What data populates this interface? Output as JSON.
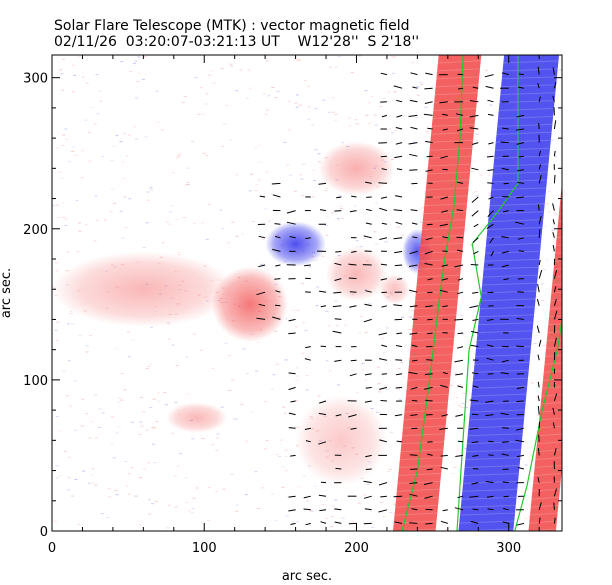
{
  "chart_data": {
    "type": "heatmap",
    "title": "Solar Flare Telescope (MTK) : vector magnetic field",
    "subtitle": "02/11/26  03:20:07-03:21:13 UT    W12'28''  S 2'18''",
    "xlabel": "arc sec.",
    "ylabel": "arc sec.",
    "xlim": [
      0,
      335
    ],
    "ylim": [
      0,
      315
    ],
    "x_ticks": [
      0,
      100,
      200,
      300
    ],
    "y_ticks": [
      0,
      100,
      200,
      300
    ],
    "colormap": {
      "positive": "#f24b4b",
      "negative": "#3b3bee",
      "background": "#ffffff"
    },
    "neutral_line_color": "#22c82e",
    "vector_color": "#000000",
    "regions": [
      {
        "name": "positive-plage-left",
        "polarity": "positive",
        "cx": 130,
        "cy": 150,
        "rx": 25,
        "ry": 25,
        "strength": 0.75
      },
      {
        "name": "positive-diffuse-left",
        "polarity": "positive",
        "cx": 60,
        "cy": 160,
        "rx": 60,
        "ry": 25,
        "strength": 0.4
      },
      {
        "name": "positive-diffuse-lower",
        "polarity": "positive",
        "cx": 95,
        "cy": 75,
        "rx": 20,
        "ry": 10,
        "strength": 0.4
      },
      {
        "name": "negative-spot-center",
        "polarity": "negative",
        "cx": 160,
        "cy": 190,
        "rx": 20,
        "ry": 15,
        "strength": 0.9
      },
      {
        "name": "negative-spot-right",
        "polarity": "negative",
        "cx": 240,
        "cy": 185,
        "rx": 10,
        "ry": 15,
        "strength": 0.85
      },
      {
        "name": "positive-patch-upper",
        "polarity": "positive",
        "cx": 200,
        "cy": 240,
        "rx": 25,
        "ry": 18,
        "strength": 0.45
      },
      {
        "name": "positive-patch-mid",
        "polarity": "positive",
        "cx": 200,
        "cy": 170,
        "rx": 20,
        "ry": 18,
        "strength": 0.4
      },
      {
        "name": "positive-patch-small",
        "polarity": "positive",
        "cx": 225,
        "cy": 160,
        "rx": 10,
        "ry": 10,
        "strength": 0.35
      },
      {
        "name": "positive-patch-lower",
        "polarity": "positive",
        "cx": 190,
        "cy": 60,
        "rx": 30,
        "ry": 30,
        "strength": 0.3
      }
    ],
    "bands": [
      {
        "name": "positive-band-west",
        "polarity": "positive",
        "x_at_bottom": 238,
        "x_at_top": 268,
        "half_width": 14
      },
      {
        "name": "negative-band",
        "polarity": "negative",
        "x_at_bottom": 285,
        "x_at_top": 315,
        "half_width": 18
      },
      {
        "name": "positive-band-east",
        "polarity": "positive",
        "x_at_bottom": 322,
        "x_at_top": 352,
        "half_width": 9
      }
    ],
    "neutral_lines": [
      {
        "name": "neutral-line-1",
        "points": [
          [
            230,
            0
          ],
          [
            240,
            40
          ],
          [
            248,
            100
          ],
          [
            254,
            150
          ],
          [
            258,
            180
          ],
          [
            264,
            215
          ],
          [
            268,
            260
          ],
          [
            270,
            315
          ]
        ]
      },
      {
        "name": "neutral-line-2",
        "points": [
          [
            266,
            0
          ],
          [
            270,
            60
          ],
          [
            274,
            120
          ],
          [
            282,
            155
          ],
          [
            276,
            190
          ],
          [
            292,
            210
          ],
          [
            306,
            230
          ],
          [
            306,
            290
          ],
          [
            306,
            315
          ]
        ]
      },
      {
        "name": "neutral-line-3",
        "points": [
          [
            304,
            0
          ],
          [
            312,
            30
          ],
          [
            322,
            80
          ],
          [
            332,
            120
          ],
          [
            335,
            140
          ]
        ]
      }
    ]
  }
}
